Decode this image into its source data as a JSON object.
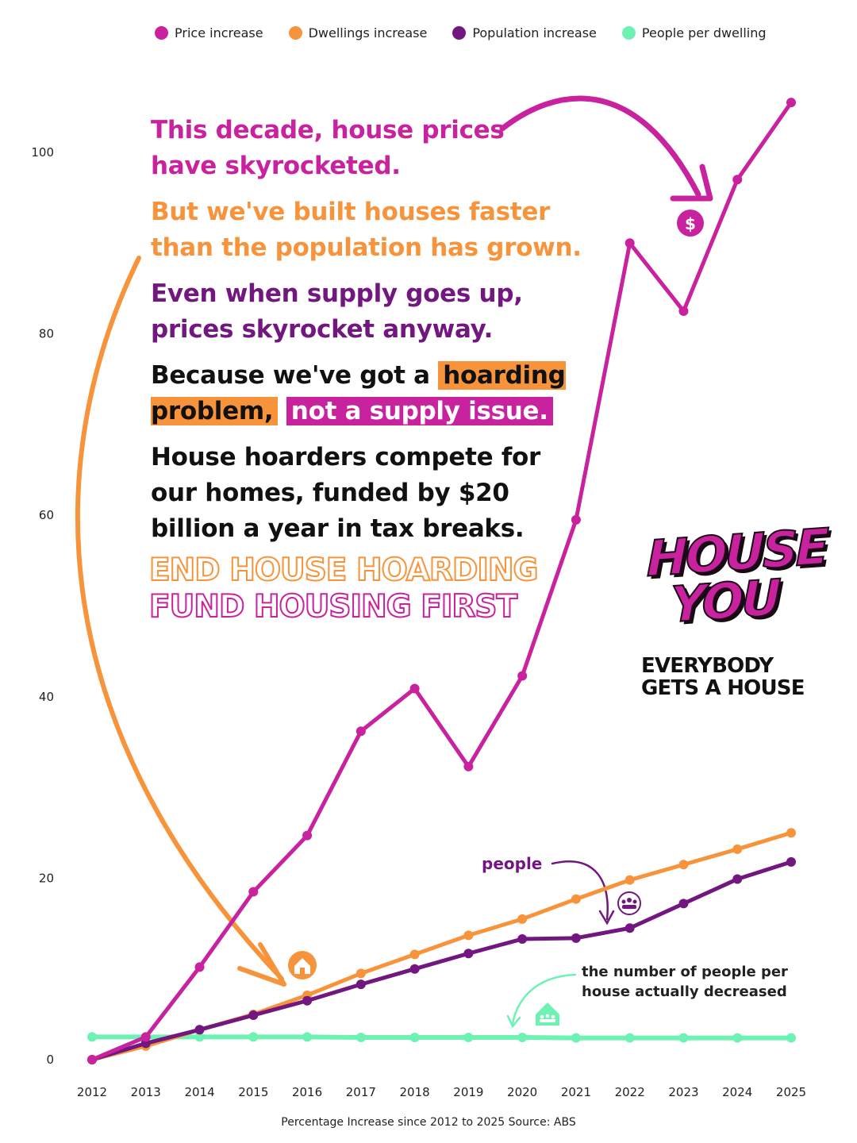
{
  "legend": [
    {
      "label": "Price increase",
      "color": "#c8229f"
    },
    {
      "label": "Dwellings increase",
      "color": "#f7943b"
    },
    {
      "label": "Population increase",
      "color": "#72177f"
    },
    {
      "label": "People per dwelling",
      "color": "#6df2b4"
    }
  ],
  "headlines": {
    "line1": "This decade, house prices have skyrocketed.",
    "line2": "But we've built houses faster than the population has grown.",
    "line3": "Even when supply goes up, prices skyrocket anyway.",
    "line4_prefix": "Because we've got a ",
    "line4_highlight1": "hoarding problem,",
    "line4_highlight2": "not a supply issue.",
    "line5": "House hoarders compete for our homes, funded by $20 billion a year in tax breaks."
  },
  "cta": {
    "line1": "END HOUSE HOARDING",
    "line2": "FUND HOUSING FIRST"
  },
  "logo": {
    "word1": "HOUSE",
    "word2": "YOU",
    "tagline_line1": "EVERYBODY",
    "tagline_line2": "GETS A HOUSE"
  },
  "annotations": {
    "people": "people",
    "decreased": "the number of people per house actually decreased",
    "dollar": "$"
  },
  "caption": "Percentage Increase since 2012 to 2025 Source: ABS",
  "chart_data": {
    "type": "line",
    "x": [
      2012,
      2013,
      2014,
      2015,
      2016,
      2017,
      2018,
      2019,
      2020,
      2021,
      2022,
      2023,
      2024,
      2025
    ],
    "series": [
      {
        "name": "Price increase",
        "color": "#c8229f",
        "values": [
          0,
          2.5,
          10.2,
          18.5,
          24.7,
          36.2,
          40.9,
          32.3,
          42.3,
          59.5,
          90,
          82.5,
          97,
          105.5
        ]
      },
      {
        "name": "Dwellings increase",
        "color": "#f7943b",
        "values": [
          0,
          1.5,
          3.3,
          5,
          7.1,
          9.5,
          11.6,
          13.7,
          15.5,
          17.7,
          19.8,
          21.5,
          23.2,
          25
        ]
      },
      {
        "name": "Population increase",
        "color": "#72177f",
        "values": [
          0,
          1.8,
          3.3,
          4.9,
          6.5,
          8.3,
          10,
          11.7,
          13.3,
          13.4,
          14.5,
          17.2,
          19.9,
          21.8
        ]
      },
      {
        "name": "People per dwelling",
        "color": "#6df2b4",
        "values": [
          2.5,
          2.5,
          2.5,
          2.5,
          2.5,
          2.45,
          2.45,
          2.45,
          2.45,
          2.4,
          2.4,
          2.4,
          2.4,
          2.4
        ]
      }
    ],
    "y_ticks": [
      0,
      20,
      40,
      60,
      80,
      100
    ],
    "ylim": [
      0,
      110
    ],
    "xlabel": "Percentage Increase since 2012 to 2025 Source: ABS",
    "grid": false,
    "legend_position": "top"
  }
}
